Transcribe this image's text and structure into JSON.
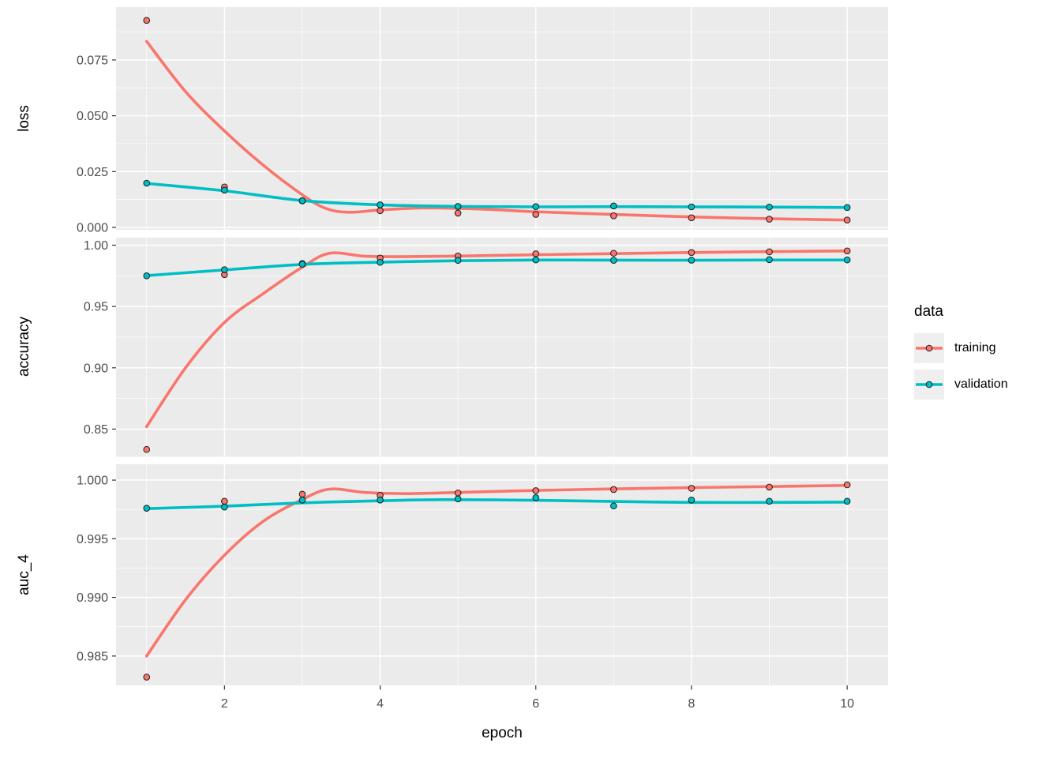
{
  "figure": {
    "background": "#FFFFFF",
    "panel_background": "#EBEBEB",
    "grid_color": "#FFFFFF",
    "tick_mark_color": "#333333",
    "tick_label_color": "#4D4D4D",
    "axis_title_color": "#000000",
    "legend_key_background": "#EFEFEF"
  },
  "chart_data": {
    "type": "line",
    "title": "",
    "xlabel": "epoch",
    "facets_shared_x": true,
    "x": [
      1,
      2,
      3,
      4,
      5,
      6,
      7,
      8,
      9,
      10
    ],
    "xlim": [
      0.607,
      10.526
    ],
    "xticks": [
      2,
      4,
      6,
      8,
      10
    ],
    "xtick_labels": [
      "2",
      "4",
      "6",
      "8",
      "10"
    ],
    "x_minor": [
      1,
      3,
      5,
      7,
      9
    ],
    "grid": "on",
    "legend": {
      "title": "data",
      "position": "right",
      "entries": [
        {
          "label": "training",
          "color": "#F8766D"
        },
        {
          "label": "validation",
          "color": "#00BFC4"
        }
      ]
    },
    "point_style": {
      "radius": 3.8,
      "stroke": "#000000",
      "stroke_opacity": 0.85
    },
    "line_width": 3.6,
    "panels": [
      {
        "metric": "loss",
        "ylim": [
          -0.00106,
          0.09866
        ],
        "yticks": [
          0.0,
          0.025,
          0.05,
          0.075
        ],
        "ytick_labels": [
          "0.000",
          "0.025",
          "0.050",
          "0.075"
        ],
        "series": [
          {
            "name": "training",
            "color": "#F8766D",
            "points": [
              0.0927,
              0.0181,
              0.0119,
              0.0075,
              0.0064,
              0.0058,
              0.0052,
              0.0043,
              0.0037,
              0.0033
            ],
            "smooth": [
              [
                1,
                0.0833
              ],
              [
                1.5,
                0.0608
              ],
              [
                2,
                0.0432
              ],
              [
                2.5,
                0.0278
              ],
              [
                3,
                0.0146
              ],
              [
                3.3,
                0.0085
              ],
              [
                3.6,
                0.0068
              ],
              [
                4,
                0.0078
              ],
              [
                4.5,
                0.0087
              ],
              [
                5,
                0.0085
              ],
              [
                5.5,
                0.0079
              ],
              [
                6,
                0.007
              ],
              [
                7,
                0.0058
              ],
              [
                8,
                0.0047
              ],
              [
                9,
                0.0039
              ],
              [
                10,
                0.0033
              ]
            ]
          },
          {
            "name": "validation",
            "color": "#00BFC4",
            "points": [
              0.0198,
              0.0167,
              0.0119,
              0.0101,
              0.0094,
              0.0093,
              0.0096,
              0.0092,
              0.0091,
              0.0089
            ],
            "smooth": [
              [
                1,
                0.0197
              ],
              [
                2,
                0.0164
              ],
              [
                3,
                0.012
              ],
              [
                4,
                0.0101
              ],
              [
                5,
                0.0094
              ],
              [
                6,
                0.0092
              ],
              [
                7,
                0.0093
              ],
              [
                8,
                0.0092
              ],
              [
                9,
                0.0091
              ],
              [
                10,
                0.0089
              ]
            ]
          }
        ]
      },
      {
        "metric": "accuracy",
        "ylim": [
          0.82743,
          1.00612
        ],
        "yticks": [
          0.85,
          0.9,
          0.95,
          1.0
        ],
        "ytick_labels": [
          "0.85",
          "0.90",
          "0.95",
          "1.00"
        ],
        "series": [
          {
            "name": "training",
            "color": "#F8766D",
            "points": [
              0.8334,
              0.976,
              0.985,
              0.9895,
              0.9912,
              0.993,
              0.9934,
              0.994,
              0.9946,
              0.9953
            ],
            "smooth": [
              [
                1,
                0.852
              ],
              [
                1.5,
                0.9
              ],
              [
                2,
                0.937
              ],
              [
                2.5,
                0.9606
              ],
              [
                3,
                0.9821
              ],
              [
                3.35,
                0.9934
              ],
              [
                3.8,
                0.991
              ],
              [
                4.3,
                0.9906
              ],
              [
                5,
                0.9911
              ],
              [
                6,
                0.9922
              ],
              [
                7,
                0.9931
              ],
              [
                8,
                0.994
              ],
              [
                9,
                0.9947
              ],
              [
                10,
                0.9953
              ]
            ]
          },
          {
            "name": "validation",
            "color": "#00BFC4",
            "points": [
              0.975,
              0.98,
              0.9845,
              0.986,
              0.9876,
              0.988,
              0.9876,
              0.9877,
              0.9882,
              0.988
            ],
            "smooth": [
              [
                1,
                0.9752
              ],
              [
                2,
                0.9798
              ],
              [
                3,
                0.9843
              ],
              [
                4,
                0.9861
              ],
              [
                5,
                0.9873
              ],
              [
                6,
                0.9879
              ],
              [
                7,
                0.9878
              ],
              [
                8,
                0.9877
              ],
              [
                9,
                0.9879
              ],
              [
                10,
                0.9879
              ]
            ]
          }
        ]
      },
      {
        "metric": "auc_4",
        "ylim": [
          0.9825,
          1.00135
        ],
        "yticks": [
          0.985,
          0.99,
          0.995,
          1.0
        ],
        "ytick_labels": [
          "0.985",
          "0.990",
          "0.995",
          "1.000"
        ],
        "series": [
          {
            "name": "training",
            "color": "#F8766D",
            "points": [
              0.9832,
              0.9982,
              0.9988,
              0.9987,
              0.9989,
              0.9991,
              0.9992,
              0.9993,
              0.9994,
              0.9996
            ],
            "smooth": [
              [
                1,
                0.985
              ],
              [
                1.5,
                0.9898
              ],
              [
                2,
                0.9936
              ],
              [
                2.5,
                0.9965
              ],
              [
                3,
                0.99835
              ],
              [
                3.35,
                0.99923
              ],
              [
                3.8,
                0.99895
              ],
              [
                4.3,
                0.99885
              ],
              [
                5,
                0.99895
              ],
              [
                6,
                0.99912
              ],
              [
                7,
                0.99925
              ],
              [
                8,
                0.99936
              ],
              [
                9,
                0.99945
              ],
              [
                10,
                0.99955
              ]
            ]
          },
          {
            "name": "validation",
            "color": "#00BFC4",
            "points": [
              0.9976,
              0.9977,
              0.9983,
              0.9983,
              0.9984,
              0.9985,
              0.9978,
              0.9983,
              0.9982,
              0.9982
            ],
            "smooth": [
              [
                1,
                0.99757
              ],
              [
                2,
                0.99778
              ],
              [
                3,
                0.99806
              ],
              [
                4,
                0.99824
              ],
              [
                4.8,
                0.99833
              ],
              [
                6,
                0.99828
              ],
              [
                7,
                0.99818
              ],
              [
                8,
                0.9981
              ],
              [
                9,
                0.9981
              ],
              [
                10,
                0.99812
              ]
            ]
          }
        ]
      }
    ]
  }
}
